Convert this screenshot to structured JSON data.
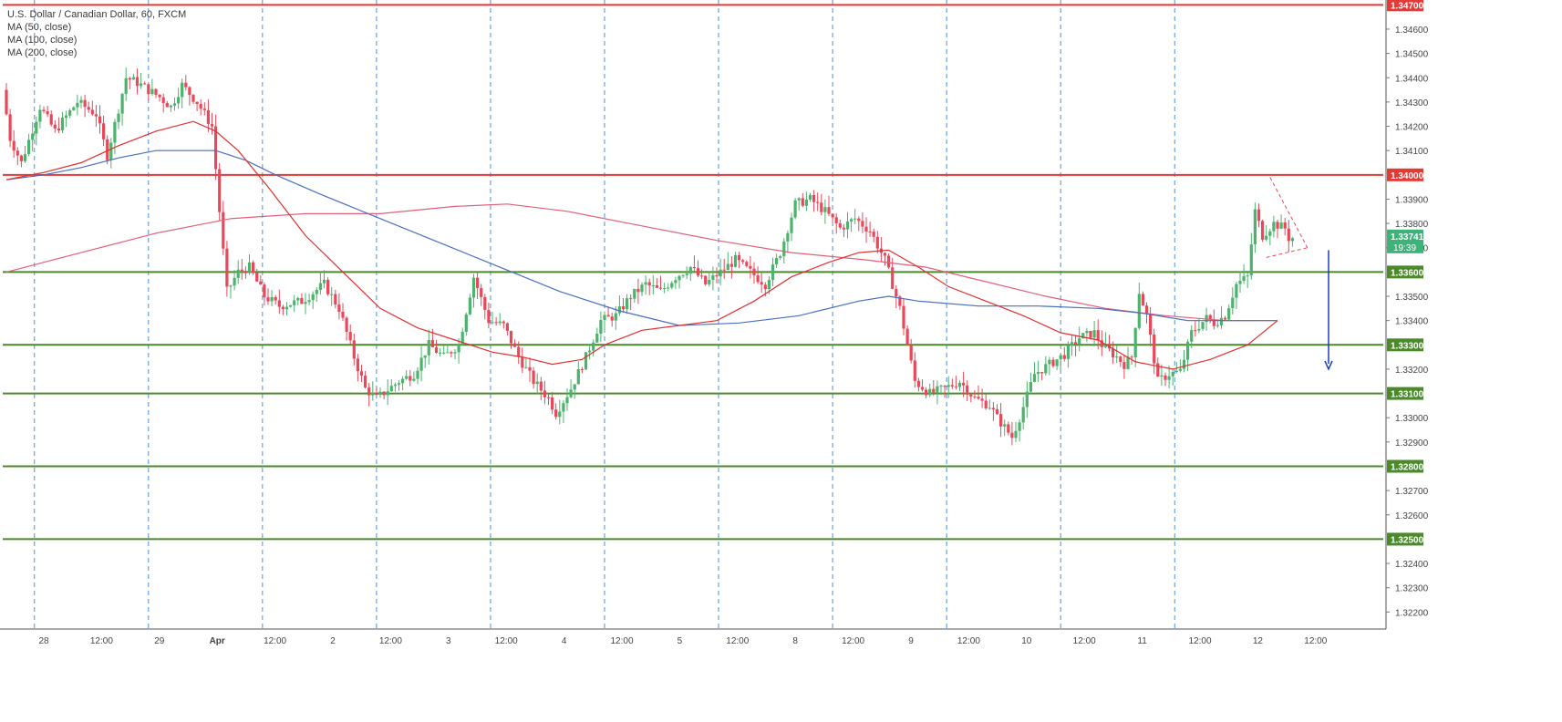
{
  "chart_data": {
    "type": "candlestick",
    "title": "U.S. Dollar / Canadian Dollar, 60, FXCM",
    "legend": [
      "MA (50, close)",
      "MA (100, close)",
      "MA (200, close)"
    ],
    "ylim": [
      1.3213,
      1.3472
    ],
    "y_ticks": [
      "1.34700",
      "1.34600",
      "1.34500",
      "1.34400",
      "1.34300",
      "1.34200",
      "1.34100",
      "1.34000",
      "1.33900",
      "1.33800",
      "1.33700",
      "1.33600",
      "1.33500",
      "1.33400",
      "1.33300",
      "1.33200",
      "1.33100",
      "1.33000",
      "1.32900",
      "1.32800",
      "1.32700",
      "1.32600",
      "1.32500",
      "1.32400",
      "1.32300",
      "1.32200"
    ],
    "x_ticks": [
      "28",
      "12:00",
      "29",
      "Apr",
      "12:00",
      "2",
      "12:00",
      "3",
      "12:00",
      "4",
      "12:00",
      "5",
      "12:00",
      "8",
      "12:00",
      "9",
      "12:00",
      "10",
      "12:00",
      "11",
      "12:00",
      "12",
      "12:00"
    ],
    "horizontal_levels": [
      {
        "value": 1.347,
        "label": "1.34700",
        "color": "#e53935"
      },
      {
        "value": 1.34,
        "label": "1.34000",
        "color": "#e53935"
      },
      {
        "value": 1.336,
        "label": "1.33600",
        "color": "#4a8a2a"
      },
      {
        "value": 1.333,
        "label": "1.33300",
        "color": "#4a8a2a"
      },
      {
        "value": 1.331,
        "label": "1.33100",
        "color": "#4a8a2a"
      },
      {
        "value": 1.328,
        "label": "1.32800",
        "color": "#4a8a2a"
      },
      {
        "value": 1.325,
        "label": "1.32500",
        "color": "#4a8a2a"
      }
    ],
    "last_price": {
      "label": "1.33741",
      "value": 1.33741,
      "countdown": "19:39"
    },
    "key_points": [
      [
        0,
        1.3435
      ],
      [
        2,
        1.3415
      ],
      [
        5,
        1.3405
      ],
      [
        10,
        1.3428
      ],
      [
        14,
        1.3418
      ],
      [
        20,
        1.343
      ],
      [
        25,
        1.3425
      ],
      [
        28,
        1.3408
      ],
      [
        33,
        1.344
      ],
      [
        36,
        1.3438
      ],
      [
        42,
        1.3432
      ],
      [
        45,
        1.3428
      ],
      [
        48,
        1.3437
      ],
      [
        52,
        1.343
      ],
      [
        56,
        1.342
      ],
      [
        58,
        1.3385
      ],
      [
        60,
        1.3352
      ],
      [
        63,
        1.336
      ],
      [
        66,
        1.3362
      ],
      [
        70,
        1.335
      ],
      [
        74,
        1.3346
      ],
      [
        80,
        1.3348
      ],
      [
        86,
        1.3355
      ],
      [
        90,
        1.3345
      ],
      [
        94,
        1.3325
      ],
      [
        97,
        1.3312
      ],
      [
        100,
        1.3308
      ],
      [
        106,
        1.3315
      ],
      [
        110,
        1.3318
      ],
      [
        114,
        1.333
      ],
      [
        118,
        1.3325
      ],
      [
        122,
        1.333
      ],
      [
        126,
        1.3358
      ],
      [
        130,
        1.334
      ],
      [
        134,
        1.3338
      ],
      [
        138,
        1.3325
      ],
      [
        142,
        1.3315
      ],
      [
        146,
        1.3308
      ],
      [
        148,
        1.3302
      ],
      [
        152,
        1.3312
      ],
      [
        156,
        1.3325
      ],
      [
        160,
        1.334
      ],
      [
        164,
        1.3342
      ],
      [
        168,
        1.335
      ],
      [
        172,
        1.3355
      ],
      [
        176,
        1.3352
      ],
      [
        180,
        1.3358
      ],
      [
        184,
        1.3362
      ],
      [
        188,
        1.3355
      ],
      [
        192,
        1.336
      ],
      [
        196,
        1.3365
      ],
      [
        200,
        1.336
      ],
      [
        204,
        1.3355
      ],
      [
        208,
        1.3368
      ],
      [
        212,
        1.3388
      ],
      [
        216,
        1.339
      ],
      [
        220,
        1.3385
      ],
      [
        224,
        1.3378
      ],
      [
        228,
        1.3382
      ],
      [
        232,
        1.3377
      ],
      [
        236,
        1.3365
      ],
      [
        240,
        1.3345
      ],
      [
        244,
        1.3315
      ],
      [
        248,
        1.331
      ],
      [
        252,
        1.3312
      ],
      [
        256,
        1.3315
      ],
      [
        260,
        1.3308
      ],
      [
        264,
        1.3305
      ],
      [
        266,
        1.33
      ],
      [
        270,
        1.3292
      ],
      [
        272,
        1.33
      ],
      [
        276,
        1.3318
      ],
      [
        280,
        1.3322
      ],
      [
        284,
        1.3326
      ],
      [
        288,
        1.3333
      ],
      [
        292,
        1.3335
      ],
      [
        294,
        1.333
      ],
      [
        298,
        1.3325
      ],
      [
        300,
        1.3322
      ],
      [
        302,
        1.3325
      ],
      [
        304,
        1.3352
      ],
      [
        306,
        1.3342
      ],
      [
        309,
        1.3315
      ],
      [
        312,
        1.3318
      ],
      [
        315,
        1.3319
      ],
      [
        318,
        1.3335
      ],
      [
        322,
        1.3341
      ],
      [
        324,
        1.3339
      ],
      [
        327,
        1.3342
      ],
      [
        330,
        1.3355
      ],
      [
        333,
        1.3358
      ],
      [
        335,
        1.3385
      ],
      [
        337,
        1.3375
      ],
      [
        340,
        1.338
      ],
      [
        343,
        1.3378
      ],
      [
        344,
        1.3374
      ]
    ],
    "ma_50": [
      [
        0,
        1.3398
      ],
      [
        10,
        1.3401
      ],
      [
        20,
        1.3405
      ],
      [
        30,
        1.3412
      ],
      [
        40,
        1.3418
      ],
      [
        50,
        1.3422
      ],
      [
        56,
        1.3418
      ],
      [
        62,
        1.341
      ],
      [
        70,
        1.3395
      ],
      [
        80,
        1.3375
      ],
      [
        90,
        1.336
      ],
      [
        100,
        1.3345
      ],
      [
        110,
        1.3337
      ],
      [
        120,
        1.3332
      ],
      [
        130,
        1.3327
      ],
      [
        138,
        1.3325
      ],
      [
        146,
        1.3322
      ],
      [
        154,
        1.3324
      ],
      [
        160,
        1.333
      ],
      [
        170,
        1.3336
      ],
      [
        180,
        1.3338
      ],
      [
        190,
        1.334
      ],
      [
        200,
        1.3348
      ],
      [
        210,
        1.3358
      ],
      [
        220,
        1.3364
      ],
      [
        228,
        1.3368
      ],
      [
        236,
        1.3369
      ],
      [
        244,
        1.3362
      ],
      [
        252,
        1.3354
      ],
      [
        262,
        1.3348
      ],
      [
        272,
        1.3342
      ],
      [
        282,
        1.3335
      ],
      [
        292,
        1.3332
      ],
      [
        302,
        1.3323
      ],
      [
        312,
        1.332
      ],
      [
        322,
        1.3324
      ],
      [
        332,
        1.333
      ],
      [
        340,
        1.334
      ]
    ],
    "ma_100": [
      [
        0,
        1.3398
      ],
      [
        10,
        1.34
      ],
      [
        20,
        1.3403
      ],
      [
        30,
        1.3407
      ],
      [
        40,
        1.341
      ],
      [
        56,
        1.341
      ],
      [
        64,
        1.3406
      ],
      [
        72,
        1.34
      ],
      [
        84,
        1.3392
      ],
      [
        100,
        1.3382
      ],
      [
        116,
        1.3372
      ],
      [
        132,
        1.3362
      ],
      [
        148,
        1.3352
      ],
      [
        164,
        1.3344
      ],
      [
        180,
        1.3338
      ],
      [
        196,
        1.3339
      ],
      [
        212,
        1.3342
      ],
      [
        228,
        1.3348
      ],
      [
        236,
        1.335
      ],
      [
        244,
        1.3348
      ],
      [
        260,
        1.3346
      ],
      [
        276,
        1.3346
      ],
      [
        292,
        1.3345
      ],
      [
        304,
        1.3343
      ],
      [
        316,
        1.334
      ],
      [
        340,
        1.334
      ]
    ],
    "ma_200": [
      [
        0,
        1.336
      ],
      [
        20,
        1.3368
      ],
      [
        40,
        1.3376
      ],
      [
        60,
        1.3382
      ],
      [
        80,
        1.3384
      ],
      [
        100,
        1.3384
      ],
      [
        120,
        1.3387
      ],
      [
        134,
        1.3388
      ],
      [
        150,
        1.3385
      ],
      [
        170,
        1.3379
      ],
      [
        190,
        1.3373
      ],
      [
        210,
        1.3368
      ],
      [
        230,
        1.3365
      ],
      [
        246,
        1.3362
      ],
      [
        262,
        1.3356
      ],
      [
        278,
        1.335
      ],
      [
        294,
        1.3345
      ],
      [
        310,
        1.3342
      ],
      [
        326,
        1.334
      ],
      [
        340,
        1.334
      ]
    ],
    "trend_lines": [
      [
        338,
        1.3399,
        348,
        1.337
      ],
      [
        337,
        1.3366,
        348,
        1.337
      ]
    ],
    "arrow": {
      "from": 1.3369,
      "to": 1.332,
      "color": "#1a3cc8"
    }
  }
}
